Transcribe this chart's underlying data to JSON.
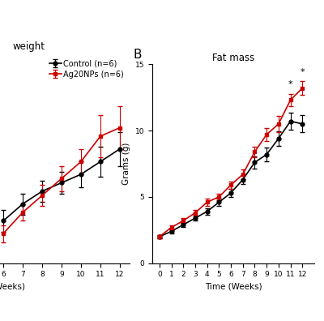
{
  "panel_A": {
    "title": "weight",
    "xlabel": "(Weeks)",
    "weeks": [
      6,
      7,
      8,
      9,
      10,
      11,
      12
    ],
    "control_mean": [
      9.8,
      10.2,
      10.5,
      10.7,
      10.9,
      11.2,
      11.5
    ],
    "control_err": [
      0.25,
      0.25,
      0.25,
      0.25,
      0.3,
      0.35,
      0.4
    ],
    "ag20np_mean": [
      9.5,
      10.0,
      10.4,
      10.8,
      11.2,
      11.8,
      12.0
    ],
    "ag20np_err": [
      0.2,
      0.2,
      0.25,
      0.3,
      0.3,
      0.5,
      0.5
    ],
    "ylim": [
      8.8,
      13.5
    ],
    "yticks": []
  },
  "panel_B": {
    "title": "Fat mass",
    "xlabel": "Time (Weeks)",
    "ylabel": "Grams (g)",
    "weeks": [
      0,
      1,
      2,
      3,
      4,
      5,
      6,
      7,
      8,
      9,
      10,
      11,
      12
    ],
    "control_mean": [
      2.0,
      2.4,
      2.9,
      3.4,
      3.9,
      4.6,
      5.3,
      6.3,
      7.6,
      8.2,
      9.4,
      10.7,
      10.5
    ],
    "control_err": [
      0.15,
      0.15,
      0.15,
      0.2,
      0.25,
      0.25,
      0.3,
      0.35,
      0.45,
      0.5,
      0.55,
      0.65,
      0.65
    ],
    "ag20np_mean": [
      2.0,
      2.7,
      3.2,
      3.8,
      4.6,
      5.0,
      5.9,
      6.7,
      8.4,
      9.7,
      10.5,
      12.3,
      13.2
    ],
    "ag20np_err": [
      0.15,
      0.15,
      0.18,
      0.2,
      0.25,
      0.25,
      0.28,
      0.35,
      0.4,
      0.5,
      0.6,
      0.45,
      0.5
    ],
    "ylim": [
      0,
      15
    ],
    "yticks": [
      0,
      5,
      10,
      15
    ],
    "sig_weeks": [
      11,
      12
    ],
    "label_B": "B"
  },
  "control_color": "#000000",
  "ag20np_color": "#cc0000",
  "legend_control": "Control (n=6)",
  "legend_ag20np": "Ag20NPs (n=6)",
  "marker_control": "o",
  "marker_ag20np": "s",
  "linewidth": 1.2,
  "markersize": 3.5,
  "capsize": 2,
  "elinewidth": 0.8,
  "fontsize_title": 8.5,
  "fontsize_label": 7.5,
  "fontsize_tick": 6.5,
  "fontsize_legend": 7.0,
  "bg_color": "#ffffff"
}
